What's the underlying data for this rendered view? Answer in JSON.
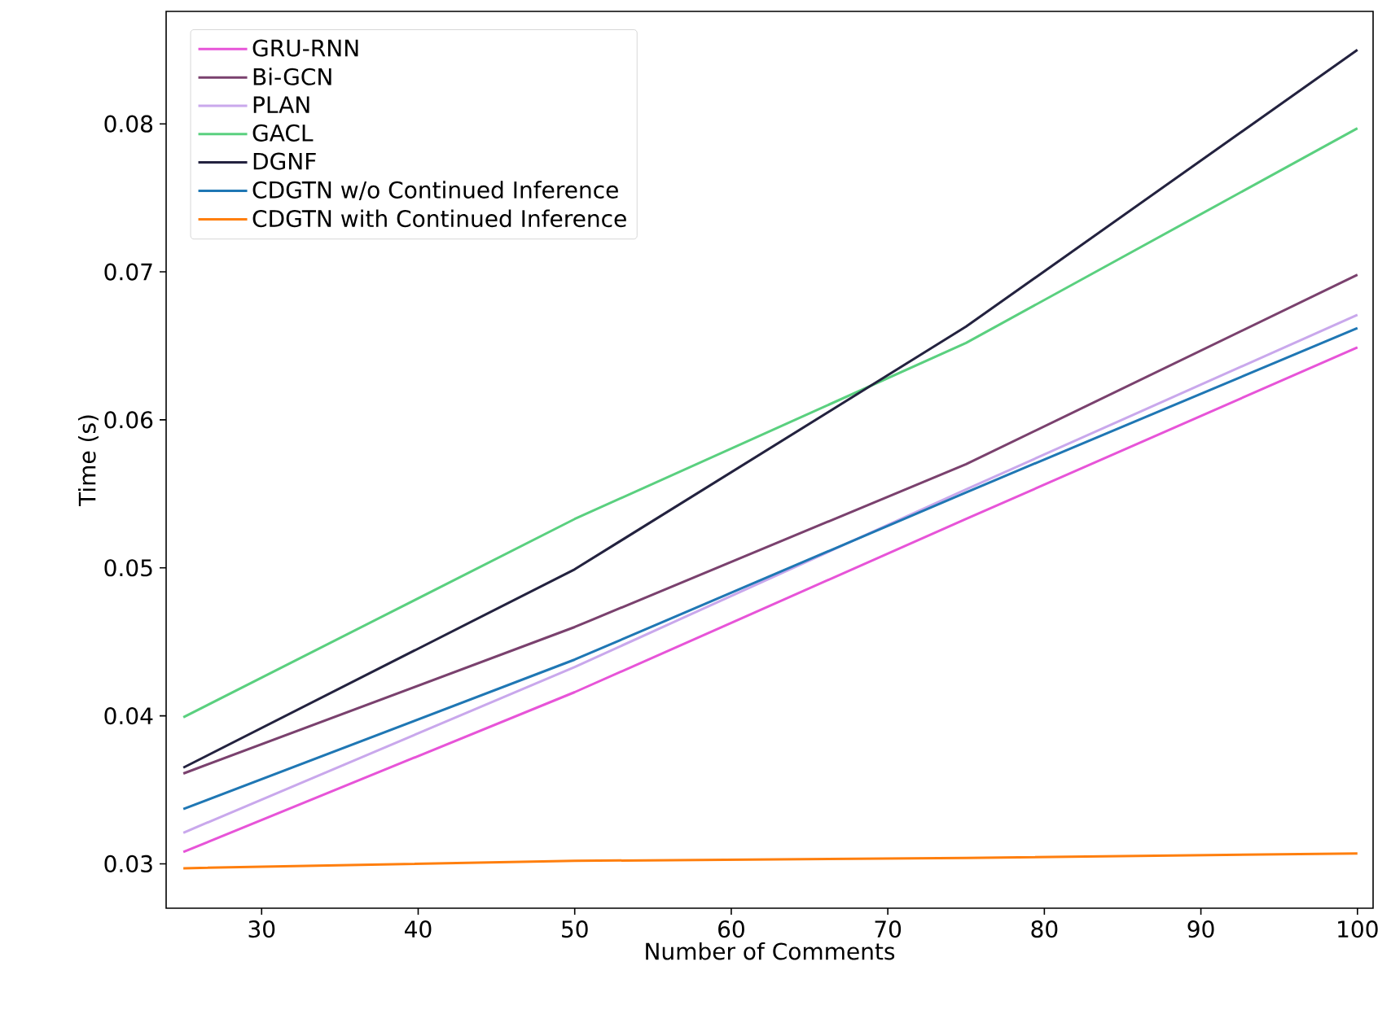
{
  "chart_data": {
    "type": "line",
    "xlabel": "Number of Comments",
    "ylabel": "Time (s)",
    "x": [
      25,
      50,
      75,
      100
    ],
    "series": [
      {
        "name": "GRU-RNN",
        "color": "#e754d8",
        "values": [
          0.0308,
          0.0416,
          0.0533,
          0.0649
        ]
      },
      {
        "name": "Bi-GCN",
        "color": "#7a416e",
        "values": [
          0.0361,
          0.046,
          0.057,
          0.0698
        ]
      },
      {
        "name": "PLAN",
        "color": "#c9a8ec",
        "values": [
          0.0321,
          0.0433,
          0.0553,
          0.0671
        ]
      },
      {
        "name": "GACL",
        "color": "#5ad07f",
        "values": [
          0.0399,
          0.0533,
          0.0652,
          0.0797
        ]
      },
      {
        "name": "DGNF",
        "color": "#23223f",
        "values": [
          0.0365,
          0.0499,
          0.0663,
          0.085
        ]
      },
      {
        "name": "CDGTN w/o Continued Inference",
        "color": "#1f77b4",
        "values": [
          0.0337,
          0.0438,
          0.0551,
          0.0662
        ]
      },
      {
        "name": "CDGTN with Continued Inference",
        "color": "#ff7f0e",
        "values": [
          0.0297,
          0.0302,
          0.0304,
          0.0307
        ]
      }
    ],
    "xlim": [
      23.9,
      101.0
    ],
    "ylim": [
      0.027,
      0.0876
    ],
    "xticks": [
      30,
      40,
      50,
      60,
      70,
      80,
      90,
      100
    ],
    "yticks": [
      0.03,
      0.04,
      0.05,
      0.06,
      0.07,
      0.08
    ],
    "legend": "top left",
    "grid": false,
    "marker": "none",
    "line_style": "solid"
  }
}
